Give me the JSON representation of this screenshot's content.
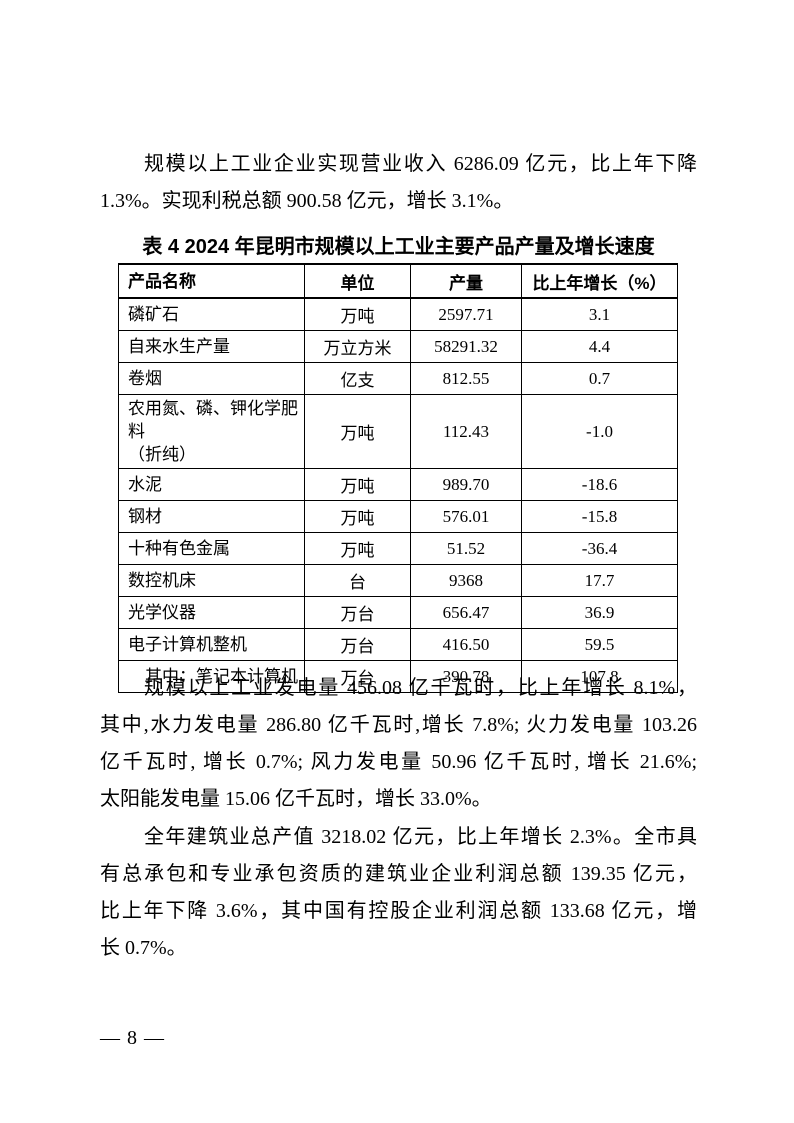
{
  "paragraph1": {
    "lines": [
      "规模以上工业企业实现营业收入 6286.09 亿元，比上年下降",
      "1.3%。实现利税总额 900.58 亿元，增长 3.1%。"
    ]
  },
  "table": {
    "title": "表 4 2024 年昆明市规模以上工业主要产品产量及增长速度",
    "headers": [
      "产品名称",
      "单位",
      "产量",
      "比上年增长（%）"
    ],
    "rows": [
      {
        "name": "磷矿石",
        "unit": "万吨",
        "output": "2597.71",
        "growth": "3.1"
      },
      {
        "name": "自来水生产量",
        "unit": "万立方米",
        "output": "58291.32",
        "growth": "4.4"
      },
      {
        "name": "卷烟",
        "unit": "亿支",
        "output": "812.55",
        "growth": "0.7"
      },
      {
        "name": "农用氮、磷、钾化学肥料\n（折纯）",
        "unit": "万吨",
        "output": "112.43",
        "growth": "-1.0"
      },
      {
        "name": "水泥",
        "unit": "万吨",
        "output": "989.70",
        "growth": "-18.6"
      },
      {
        "name": "钢材",
        "unit": "万吨",
        "output": "576.01",
        "growth": "-15.8"
      },
      {
        "name": "十种有色金属",
        "unit": "万吨",
        "output": "51.52",
        "growth": "-36.4"
      },
      {
        "name": "数控机床",
        "unit": "台",
        "output": "9368",
        "growth": "17.7"
      },
      {
        "name": "光学仪器",
        "unit": "万台",
        "output": "656.47",
        "growth": "36.9"
      },
      {
        "name": "电子计算机整机",
        "unit": "万台",
        "output": "416.50",
        "growth": "59.5"
      },
      {
        "name": "其中：笔记本计算机",
        "unit": "万台",
        "output": "390.78",
        "growth": "107.8"
      }
    ]
  },
  "paragraph2": {
    "lines": [
      "规模以上工业发电量 456.08 亿千瓦时，比上年增长 8.1%，",
      "其中,水力发电量 286.80 亿千瓦时,增长 7.8%; 火力发电量 103.26",
      "亿千瓦时, 增长 0.7%; 风力发电量 50.96 亿千瓦时, 增长 21.6%;",
      "太阳能发电量 15.06 亿千瓦时，增长 33.0%。"
    ]
  },
  "paragraph3": {
    "lines": [
      "全年建筑业总产值 3218.02 亿元，比上年增长 2.3%。全市具",
      "有总承包和专业承包资质的建筑业企业利润总额 139.35 亿元，",
      "比上年下降 3.6%，其中国有控股企业利润总额 133.68 亿元，增",
      "长 0.7%。"
    ]
  },
  "footer": {
    "page_number": "— 8 —"
  }
}
